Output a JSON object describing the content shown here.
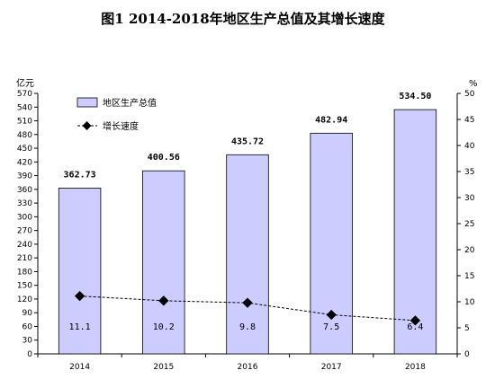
{
  "chart_data": {
    "type": "bar",
    "title": "图1  2014-2018年地区生产总值及其增长速度",
    "categories": [
      "2014",
      "2015",
      "2016",
      "2017",
      "2018"
    ],
    "series": [
      {
        "name": "地区生产总值",
        "kind": "bar",
        "axis": "left",
        "values": [
          362.73,
          400.56,
          435.72,
          482.94,
          534.5
        ],
        "labels": [
          "362.73",
          "400.56",
          "435.72",
          "482.94",
          "534.50"
        ]
      },
      {
        "name": "增长速度",
        "kind": "line",
        "axis": "right",
        "values": [
          11.1,
          10.2,
          9.8,
          7.5,
          6.4
        ],
        "labels": [
          "11.1",
          "10.2",
          "9.8",
          "7.5",
          "6.4"
        ]
      }
    ],
    "ylabel": "亿元",
    "y2label": "%",
    "ylim": [
      0,
      570
    ],
    "y2lim": [
      0,
      50
    ],
    "yticks": [
      "0",
      "30",
      "60",
      "90",
      "120",
      "150",
      "180",
      "210",
      "240",
      "270",
      "300",
      "330",
      "360",
      "390",
      "420",
      "450",
      "480",
      "510",
      "540",
      "570"
    ],
    "y2ticks": [
      "0",
      "5",
      "10",
      "15",
      "20",
      "25",
      "30",
      "35",
      "40",
      "45",
      "50"
    ],
    "grid": false,
    "legend_position": "top-left",
    "colors": {
      "bar_fill": "#ccccff",
      "bar_stroke": "#000000",
      "line": "#000000",
      "marker": "#000000"
    }
  }
}
